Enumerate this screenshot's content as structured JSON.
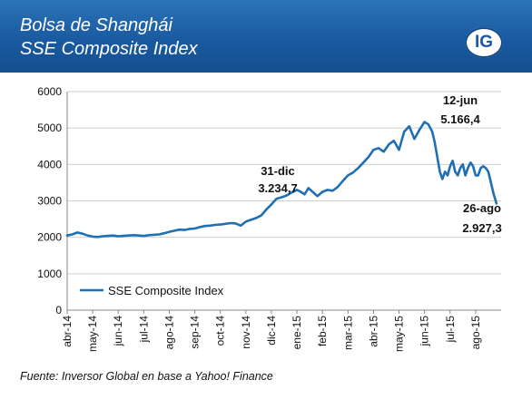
{
  "header": {
    "title_line1": "Bolsa de Shanghái",
    "title_line2": "SSE Composite Index",
    "logo_text": "IG",
    "bg_color": "#1a5aa0"
  },
  "footer": {
    "source": "Fuente: Inversor Global en base a Yahoo! Finance"
  },
  "chart_data": {
    "type": "line",
    "title": "",
    "xlabel": "",
    "ylabel": "",
    "ylim": [
      0,
      6000
    ],
    "yticks": [
      0,
      1000,
      2000,
      3000,
      4000,
      5000,
      6000
    ],
    "yticklabels": [
      "0",
      "1000",
      "2000",
      "3000",
      "4000",
      "5000",
      "6000"
    ],
    "xticklabels": [
      "abr-14",
      "may-14",
      "jun-14",
      "jul-14",
      "ago-14",
      "sep-14",
      "oct-14",
      "nov-14",
      "dic-14",
      "ene-15",
      "feb-15",
      "mar-15",
      "abr-15",
      "may-15",
      "jun-15",
      "jul-15",
      "ago-15"
    ],
    "grid": true,
    "legend": "bottom-left",
    "line_color": "#1f6fb5",
    "series": [
      {
        "name": "SSE Composite Index",
        "x": [
          0,
          0.2,
          0.4,
          0.6,
          0.8,
          1.0,
          1.2,
          1.4,
          1.6,
          1.8,
          2.0,
          2.2,
          2.4,
          2.6,
          2.8,
          3.0,
          3.2,
          3.4,
          3.6,
          3.8,
          4.0,
          4.2,
          4.4,
          4.6,
          4.8,
          5.0,
          5.2,
          5.4,
          5.6,
          5.8,
          6.0,
          6.2,
          6.4,
          6.6,
          6.8,
          7.0,
          7.2,
          7.4,
          7.6,
          7.8,
          8.0,
          8.2,
          8.4,
          8.6,
          8.8,
          9.0,
          9.15,
          9.3,
          9.45,
          9.6,
          9.8,
          10.0,
          10.2,
          10.4,
          10.6,
          10.8,
          11.0,
          11.2,
          11.4,
          11.6,
          11.8,
          12.0,
          12.2,
          12.4,
          12.6,
          12.8,
          13.0,
          13.2,
          13.4,
          13.6,
          13.8,
          14.0,
          14.15,
          14.3,
          14.4,
          14.5,
          14.6,
          14.7,
          14.8,
          14.9,
          15.0,
          15.1,
          15.2,
          15.3,
          15.4,
          15.5,
          15.6,
          15.7,
          15.8,
          15.9,
          16.0,
          16.1,
          16.2,
          16.3,
          16.4,
          16.5,
          16.6,
          16.7,
          16.82
        ],
        "values": [
          2050,
          2080,
          2130,
          2100,
          2050,
          2020,
          2010,
          2030,
          2040,
          2050,
          2030,
          2040,
          2050,
          2060,
          2050,
          2040,
          2060,
          2070,
          2080,
          2110,
          2150,
          2180,
          2210,
          2200,
          2230,
          2240,
          2280,
          2310,
          2320,
          2340,
          2350,
          2370,
          2390,
          2380,
          2320,
          2430,
          2480,
          2530,
          2600,
          2760,
          2900,
          3060,
          3100,
          3150,
          3234.7,
          3300,
          3250,
          3180,
          3350,
          3260,
          3130,
          3250,
          3300,
          3280,
          3380,
          3550,
          3700,
          3780,
          3900,
          4050,
          4200,
          4400,
          4450,
          4350,
          4550,
          4650,
          4400,
          4900,
          5050,
          4700,
          4950,
          5166.4,
          5100,
          4900,
          4600,
          4200,
          3800,
          3600,
          3800,
          3700,
          3950,
          4100,
          3800,
          3700,
          3900,
          4000,
          3700,
          3900,
          4050,
          3950,
          3700,
          3700,
          3900,
          3950,
          3900,
          3800,
          3500,
          3200,
          2927.3
        ]
      }
    ],
    "annotations": [
      {
        "line1": "31-dic",
        "line2": "3.234,7"
      },
      {
        "line1": "12-jun",
        "line2": "5.166,4"
      },
      {
        "line1": "26-ago",
        "line2": "2.927,3"
      }
    ]
  }
}
